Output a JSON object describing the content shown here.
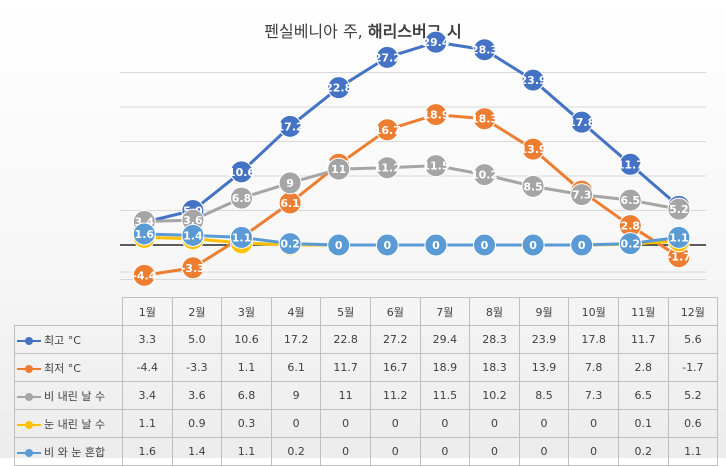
{
  "chart_data": {
    "type": "line",
    "title": "펜실베니아 주, 해리스버그 시",
    "title_plain": "펜실베니아 주, ",
    "title_bold": "해리스버그 시",
    "categories": [
      "1월",
      "2월",
      "3월",
      "4월",
      "5월",
      "6월",
      "7월",
      "8월",
      "9월",
      "10월",
      "11월",
      "12월"
    ],
    "ylim": [
      -6,
      34
    ],
    "grid": true,
    "legend": "table-bottom",
    "series": [
      {
        "name": "최고 °C",
        "color": "#4472c4",
        "values": [
          3.3,
          5.0,
          10.6,
          17.2,
          22.8,
          27.2,
          29.4,
          28.3,
          23.9,
          17.8,
          11.7,
          5.6
        ],
        "labels": [
          "3.3",
          "5.0",
          "10.6",
          "17.2",
          "22.8",
          "27.2",
          "29.4",
          "28.3",
          "23.9",
          "17.8",
          "11.7",
          "5.6"
        ]
      },
      {
        "name": "최저 °C",
        "color": "#ed7d31",
        "values": [
          -4.4,
          -3.3,
          1.1,
          6.1,
          11.7,
          16.7,
          18.9,
          18.3,
          13.9,
          7.8,
          2.8,
          -1.7
        ],
        "labels": [
          "-4.4",
          "-3.3",
          "1.1",
          "6.1",
          "11.7",
          "16.7",
          "18.9",
          "18.3",
          "13.9",
          "7.8",
          "2.8",
          "-1.7"
        ]
      },
      {
        "name": "비 내린 날 수",
        "color": "#a5a5a5",
        "values": [
          3.4,
          3.6,
          6.8,
          9,
          11,
          11.2,
          11.5,
          10.2,
          8.5,
          7.3,
          6.5,
          5.2
        ],
        "labels": [
          "3.4",
          "3.6",
          "6.8",
          "9",
          "11",
          "11.2",
          "11.5",
          "10.2",
          "8.5",
          "7.3",
          "6.5",
          "5.2"
        ]
      },
      {
        "name": "눈 내린 날 수",
        "color": "#ffc000",
        "values": [
          1.1,
          0.9,
          0.3,
          0,
          0,
          0,
          0,
          0,
          0,
          0,
          0.1,
          0.6
        ],
        "labels": [
          "1.1",
          "0.9",
          "0.3",
          "0",
          "0",
          "0",
          "0",
          "0",
          "0",
          "0",
          "0.1",
          "0.6"
        ]
      },
      {
        "name": "비 와 눈 혼합",
        "color": "#5b9bd5",
        "values": [
          1.6,
          1.4,
          1.1,
          0.2,
          0,
          0,
          0,
          0,
          0,
          0,
          0.2,
          1.1
        ],
        "labels": [
          "1.6",
          "1.4",
          "1.1",
          "0.2",
          "0",
          "0",
          "0",
          "0",
          "0",
          "0",
          "0.2",
          "1.1"
        ]
      }
    ]
  }
}
